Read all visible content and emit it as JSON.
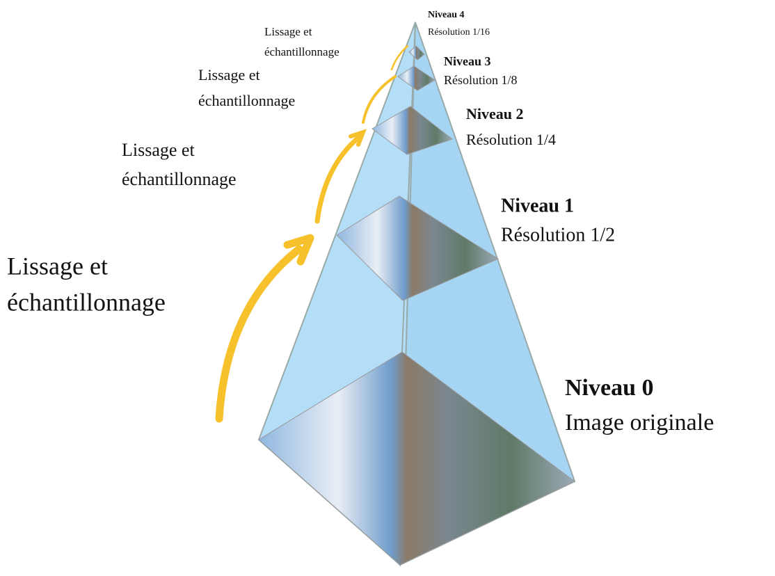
{
  "levels": [
    {
      "title": "Niveau 0",
      "subtitle": "Image originale"
    },
    {
      "title": "Niveau 1",
      "subtitle": "Résolution 1/2"
    },
    {
      "title": "Niveau 2",
      "subtitle": "Résolution 1/4"
    },
    {
      "title": "Niveau 3",
      "subtitle": "Résolution 1/8"
    },
    {
      "title": "Niveau 4",
      "subtitle": "Résolution 1/16"
    }
  ],
  "arrows": [
    {
      "lines": [
        "Lissage et",
        "échantillonnage"
      ]
    },
    {
      "lines": [
        "Lissage et",
        "échantillonnage"
      ]
    },
    {
      "lines": [
        "Lissage et",
        "échantillonnage"
      ]
    },
    {
      "lines": [
        "Lissage et",
        "échantillonnage"
      ]
    }
  ]
}
